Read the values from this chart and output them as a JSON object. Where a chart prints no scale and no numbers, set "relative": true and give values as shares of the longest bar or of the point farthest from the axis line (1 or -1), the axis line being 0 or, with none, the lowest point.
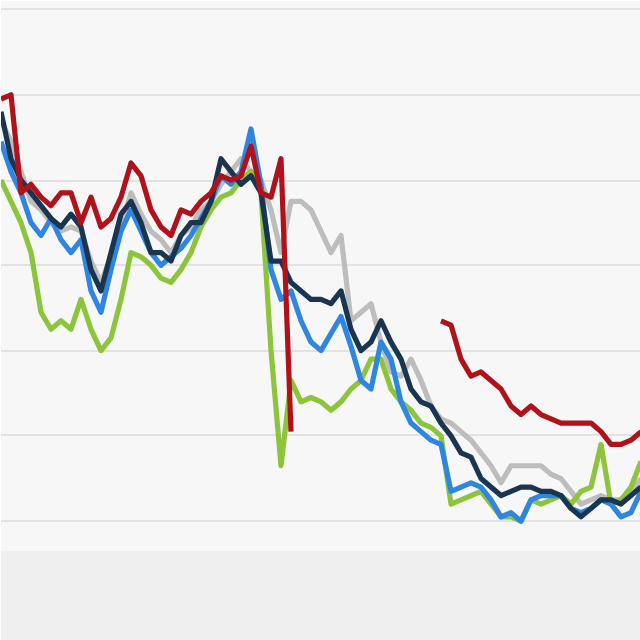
{
  "chart_data": {
    "type": "line",
    "relative": true,
    "grid": "y",
    "line_style": "solid",
    "categories": [
      null,
      null,
      null,
      null,
      null,
      null,
      null,
      null,
      null,
      null,
      null,
      null,
      null,
      null,
      null,
      null,
      null,
      null,
      null,
      null,
      null,
      null,
      null,
      null,
      null,
      null,
      null,
      null,
      null,
      null,
      null,
      null,
      null,
      null,
      null,
      null,
      null,
      null,
      null,
      null,
      null,
      null,
      null,
      null,
      null,
      null,
      null,
      null,
      null,
      null,
      null,
      null,
      null,
      null,
      null,
      null,
      null,
      null,
      null,
      null,
      null,
      null,
      null,
      null,
      null
    ],
    "series": [
      {
        "color": "#bdbdbd",
        "values": [
          0.94,
          0.89,
          0.82,
          0.75,
          0.73,
          0.7,
          0.68,
          0.69,
          0.68,
          0.61,
          0.56,
          0.62,
          0.69,
          0.77,
          0.72,
          0.68,
          0.66,
          0.63,
          0.67,
          0.69,
          0.73,
          0.75,
          0.79,
          0.82,
          0.85,
          0.82,
          0.8,
          0.73,
          0.63,
          0.75,
          0.75,
          0.73,
          0.68,
          0.63,
          0.67,
          0.47,
          0.49,
          0.51,
          0.42,
          0.35,
          0.34,
          0.38,
          0.33,
          0.27,
          0.24,
          0.23,
          0.21,
          0.19,
          0.16,
          0.13,
          0.09,
          0.13,
          0.13,
          0.13,
          0.13,
          0.11,
          0.1,
          0.07,
          0.04,
          0.05,
          0.06,
          0.05,
          0.05,
          0.07,
          0.1
        ]
      },
      {
        "color": "#8cc43c",
        "values": [
          0.8,
          0.75,
          0.7,
          0.63,
          0.49,
          0.45,
          0.47,
          0.45,
          0.52,
          0.45,
          0.4,
          0.43,
          0.52,
          0.63,
          0.62,
          0.6,
          0.57,
          0.56,
          0.59,
          0.63,
          0.69,
          0.73,
          0.76,
          0.77,
          0.8,
          0.82,
          0.77,
          0.4,
          0.13,
          0.33,
          0.28,
          0.29,
          0.28,
          0.26,
          0.28,
          0.31,
          0.33,
          0.38,
          0.38,
          0.31,
          0.28,
          0.26,
          0.23,
          0.22,
          0.2,
          0.04,
          0.05,
          0.06,
          0.07,
          0.04,
          0.01,
          0.01,
          0.0,
          0.05,
          0.04,
          0.05,
          0.06,
          0.04,
          0.07,
          0.08,
          0.18,
          0.04,
          0.05,
          0.08,
          0.14
        ]
      },
      {
        "color": "#2f86e0",
        "values": [
          0.89,
          0.82,
          0.77,
          0.7,
          0.67,
          0.71,
          0.66,
          0.63,
          0.66,
          0.54,
          0.49,
          0.59,
          0.68,
          0.73,
          0.68,
          0.63,
          0.6,
          0.62,
          0.64,
          0.67,
          0.71,
          0.75,
          0.81,
          0.79,
          0.82,
          0.92,
          0.79,
          0.59,
          0.52,
          0.54,
          0.47,
          0.42,
          0.4,
          0.44,
          0.48,
          0.41,
          0.33,
          0.31,
          0.42,
          0.38,
          0.28,
          0.23,
          0.21,
          0.19,
          0.18,
          0.07,
          0.08,
          0.09,
          0.08,
          0.05,
          0.01,
          0.02,
          0.0,
          0.05,
          0.06,
          0.06,
          0.06,
          0.03,
          0.02,
          0.03,
          0.05,
          0.04,
          0.01,
          0.02,
          0.07
        ]
      },
      {
        "color": "#1a3550",
        "values": [
          0.96,
          0.85,
          0.8,
          0.77,
          0.74,
          0.71,
          0.69,
          0.72,
          0.69,
          0.59,
          0.54,
          0.63,
          0.72,
          0.75,
          0.7,
          0.63,
          0.63,
          0.61,
          0.67,
          0.7,
          0.7,
          0.75,
          0.85,
          0.82,
          0.79,
          0.81,
          0.77,
          0.61,
          0.61,
          0.56,
          0.54,
          0.52,
          0.52,
          0.51,
          0.54,
          0.45,
          0.4,
          0.42,
          0.47,
          0.42,
          0.38,
          0.31,
          0.28,
          0.27,
          0.23,
          0.2,
          0.16,
          0.15,
          0.1,
          0.08,
          0.06,
          0.07,
          0.08,
          0.08,
          0.07,
          0.07,
          0.06,
          0.03,
          0.01,
          0.03,
          0.05,
          0.05,
          0.04,
          0.06,
          0.08
        ]
      },
      {
        "color": "#b0121b",
        "values": [
          0.99,
          1.0,
          0.77,
          0.79,
          0.76,
          0.74,
          0.77,
          0.77,
          0.7,
          0.76,
          0.69,
          0.71,
          0.76,
          0.84,
          0.81,
          0.73,
          0.69,
          0.67,
          0.73,
          0.72,
          0.75,
          0.77,
          0.81,
          0.8,
          0.81,
          0.88,
          0.77,
          0.76,
          0.85,
          0.21,
          null,
          null,
          null,
          null,
          null,
          null,
          null,
          null,
          null,
          null,
          null,
          null,
          null,
          null,
          0.47,
          0.46,
          0.38,
          0.34,
          0.35,
          0.33,
          0.31,
          0.27,
          0.25,
          0.27,
          0.25,
          0.24,
          0.23,
          0.23,
          0.23,
          0.23,
          0.21,
          0.18,
          0.18,
          0.19,
          0.21
        ]
      }
    ]
  }
}
